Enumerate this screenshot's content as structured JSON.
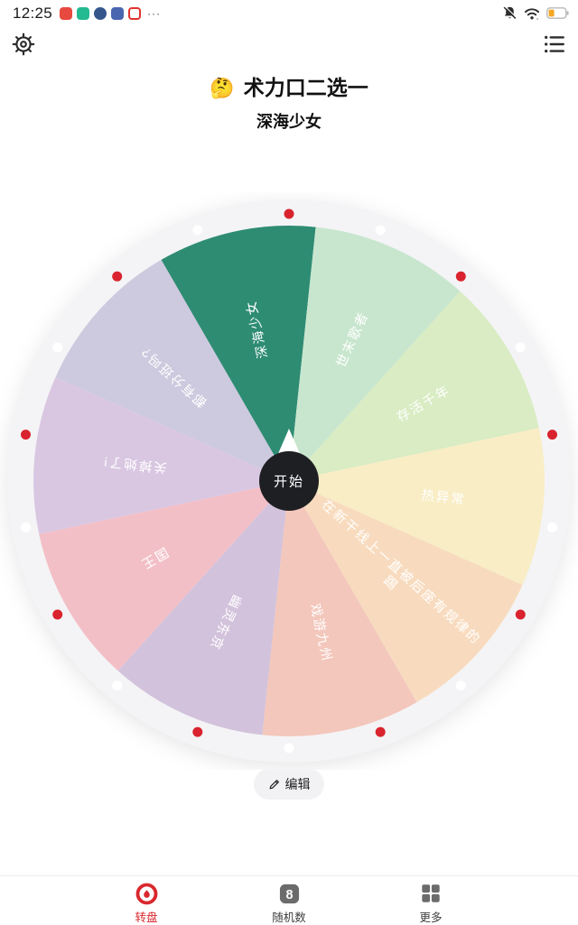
{
  "status_bar": {
    "time": "12:25",
    "more": "···",
    "app_icons": [
      {
        "name": "red-app-icon",
        "color": "#e8493f"
      },
      {
        "name": "teal-app-icon",
        "color": "#23ba92"
      },
      {
        "name": "navy-round-app-icon",
        "color": "#35568d"
      },
      {
        "name": "blue-app-icon",
        "color": "#4a66b0"
      },
      {
        "name": "red-outline-app-icon",
        "color": "#ffffff"
      }
    ],
    "right_icons": [
      "mute-bell-icon",
      "wifi-icon",
      "battery-icon"
    ],
    "battery_color": "#f5a623"
  },
  "header": {
    "title_emoji": "🤔",
    "title": "术力口二选一",
    "subtitle": "深海少女"
  },
  "wheel": {
    "center_button": "开始",
    "ring_color": "#f4f4f6",
    "hub_color": "#1e1f22",
    "boundary_dot_color": "#d9232e",
    "center_dot_color": "#ffffff",
    "dot_spacing_deg": 20,
    "segment_sweep_deg": 36,
    "first_segment_start_deg": -30,
    "segments": [
      {
        "label": "深海少女",
        "color": "#2e8c73",
        "selected": true
      },
      {
        "label": "世末歌者",
        "color": "#c8e6ce"
      },
      {
        "label": "存活千年",
        "color": "#d9ecc3"
      },
      {
        "label": "热异常",
        "color": "#f8edc5"
      },
      {
        "label": "在新干线上一直被后座有规律的踢",
        "color": "#f8dbbe",
        "lines": [
          "在新干线上一直被后座有规律的",
          "踢"
        ],
        "label_radius": 160
      },
      {
        "label": "戏游九州",
        "color": "#f3c7bb"
      },
      {
        "label": "幽灵东京",
        "color": "#d3c2dc"
      },
      {
        "label": "国王",
        "color": "#f3bfc7"
      },
      {
        "label": "关掉她了!",
        "color": "#d9c7e2"
      },
      {
        "label": "都有分班吗?",
        "color": "#cdc9de"
      }
    ]
  },
  "edit_button": {
    "label": "编辑"
  },
  "bottom_nav": {
    "active_color": "#d9282e",
    "items": [
      {
        "label": "转盘",
        "active": true
      },
      {
        "label": "随机数",
        "active": false
      },
      {
        "label": "更多",
        "active": false
      }
    ]
  }
}
